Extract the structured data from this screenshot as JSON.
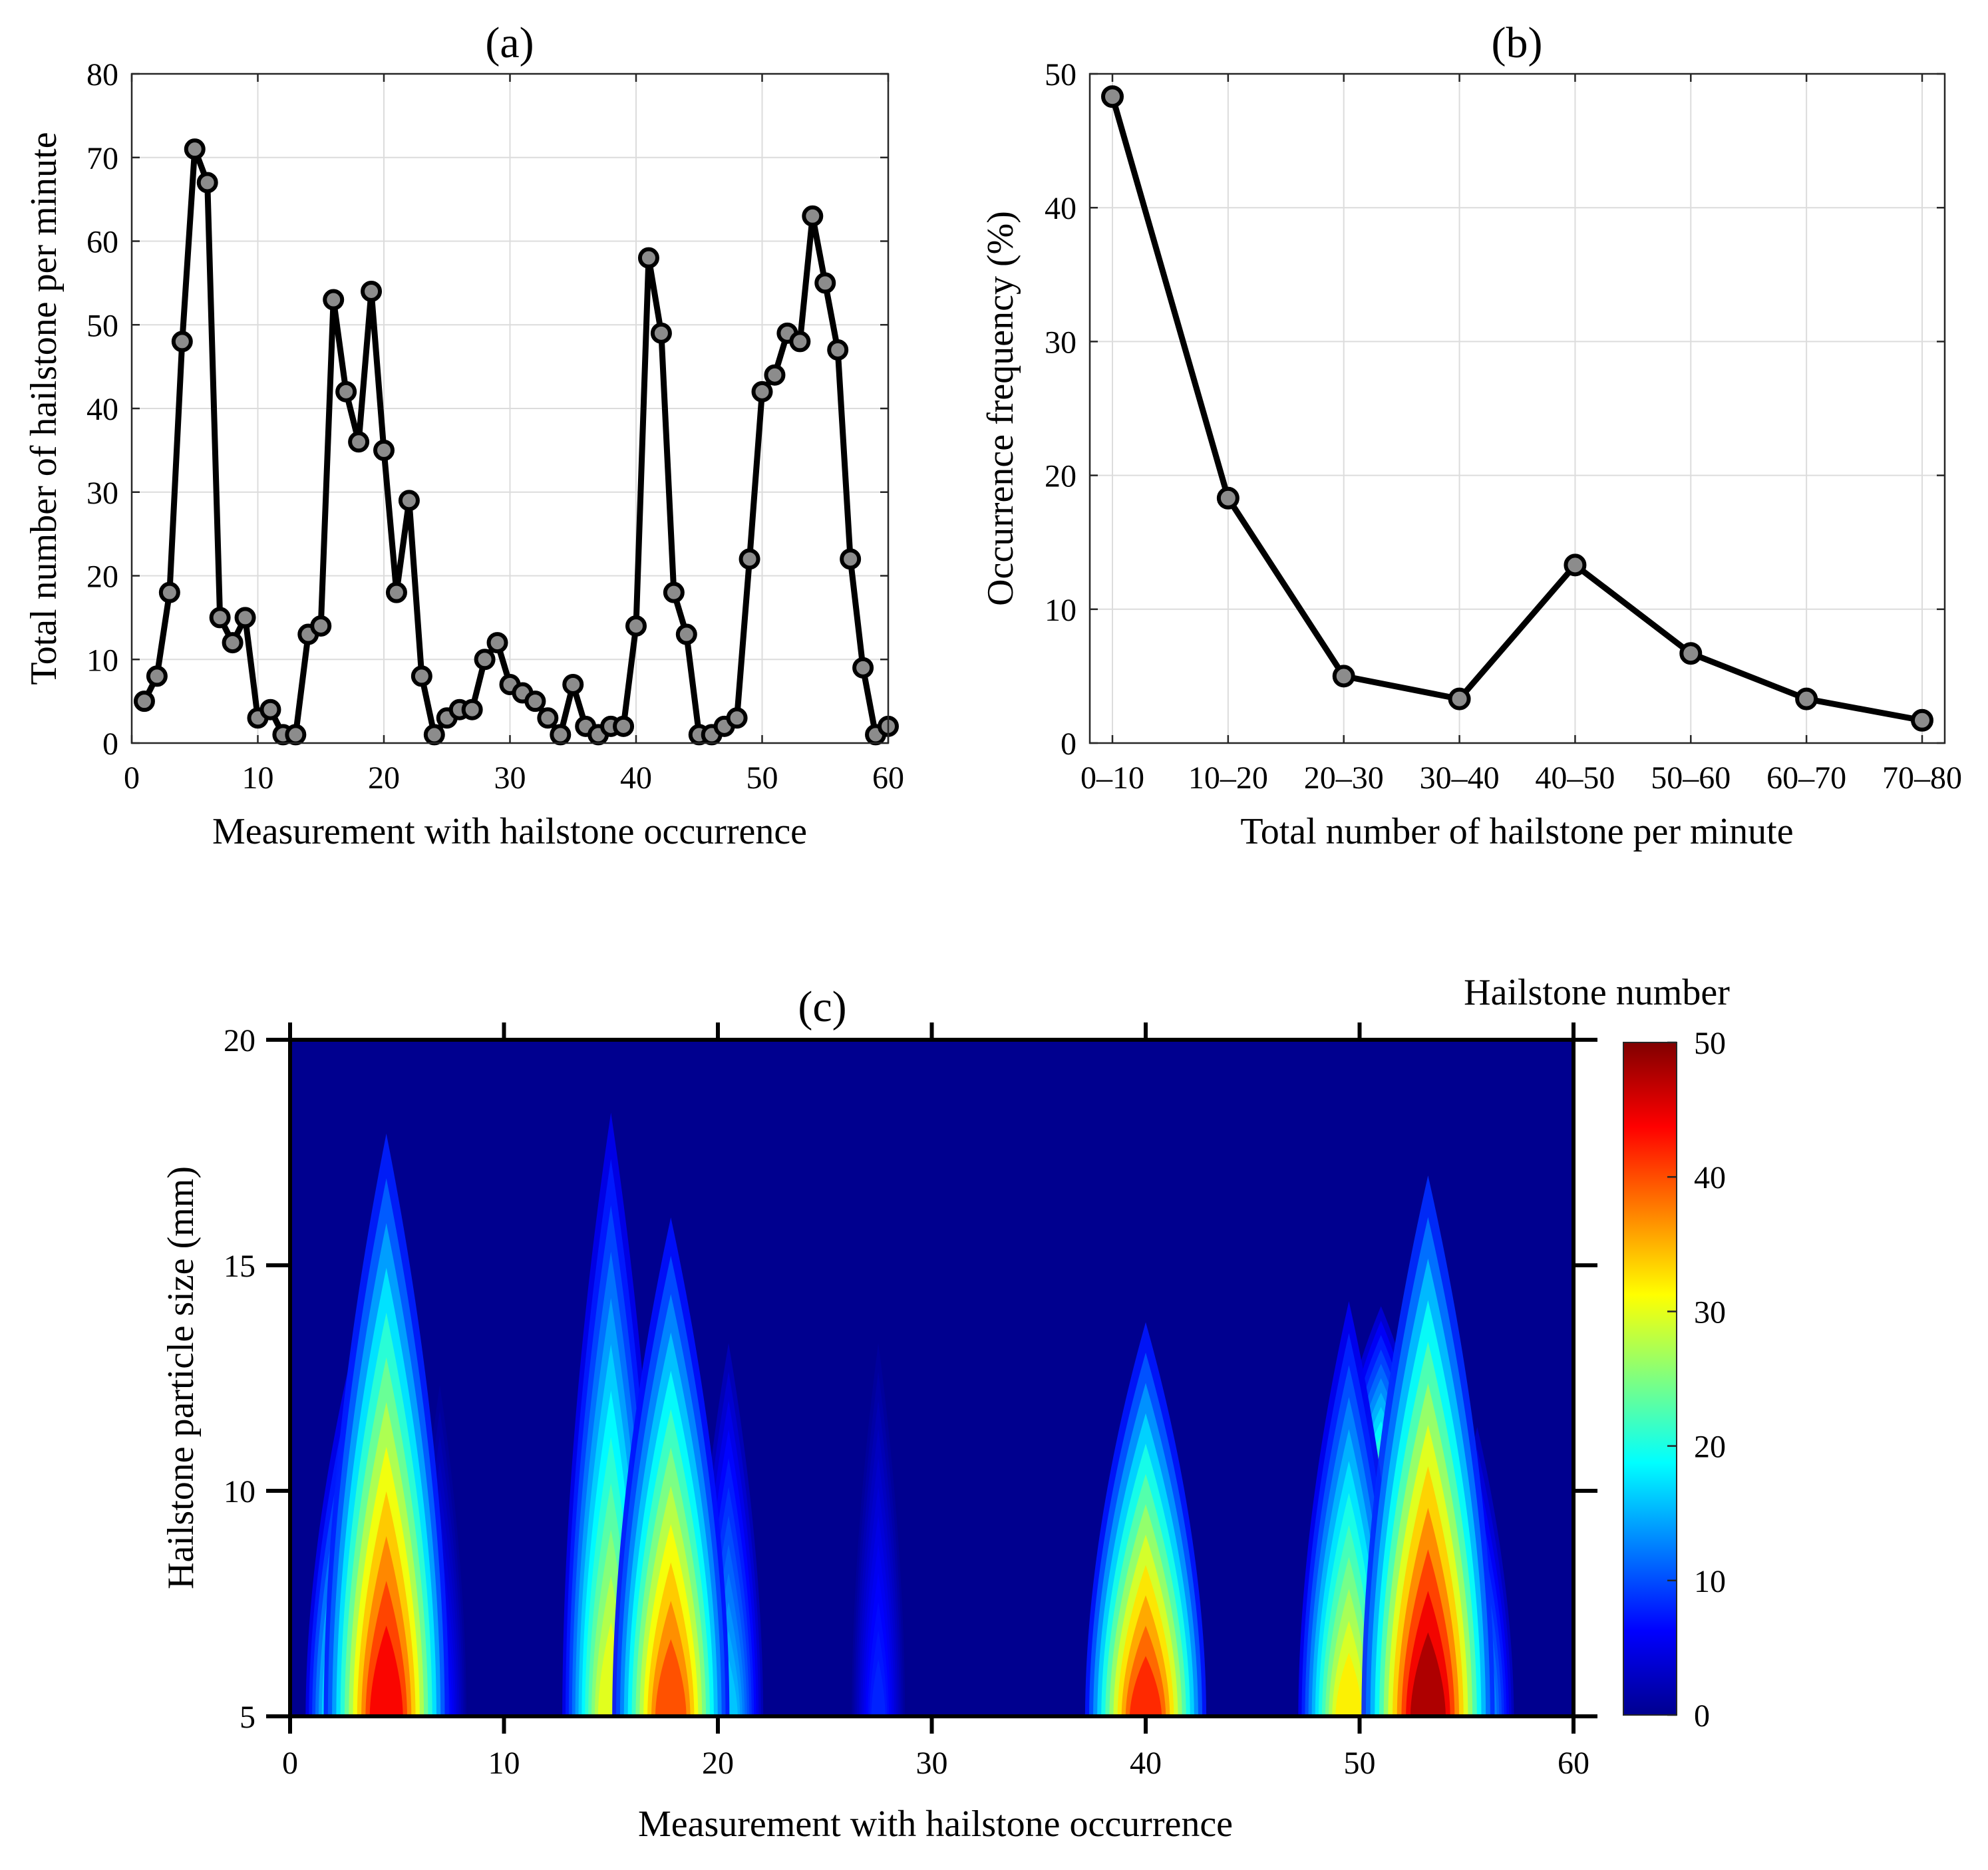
{
  "chart_data": [
    {
      "id": "a",
      "type": "line",
      "title": "(a)",
      "xlabel": "Measurement with hailstone occurrence",
      "ylabel": "Total number of hailstone per minute",
      "xlim": [
        0,
        60
      ],
      "ylim": [
        0,
        80
      ],
      "xticks": [
        0,
        10,
        20,
        30,
        40,
        50,
        60
      ],
      "yticks": [
        0,
        10,
        20,
        30,
        40,
        50,
        60,
        70,
        80
      ],
      "grid": true,
      "line_color": "#000000",
      "marker_face_color": "#8c8c8c",
      "series": [
        {
          "x": [
            1,
            2,
            3,
            4,
            5,
            6,
            7,
            8,
            9,
            10,
            11,
            12,
            13,
            14,
            15,
            16,
            17,
            18,
            19,
            20,
            21,
            22,
            23,
            24,
            25,
            26,
            27,
            28,
            29,
            30,
            31,
            32,
            33,
            34,
            35,
            36,
            37,
            38,
            39,
            40,
            41,
            42,
            43,
            44,
            45,
            46,
            47,
            48,
            49,
            50,
            51,
            52,
            53,
            54,
            55,
            56,
            57,
            58,
            59,
            60
          ],
          "values": [
            5,
            8,
            18,
            48,
            71,
            67,
            15,
            12,
            15,
            3,
            4,
            1,
            1,
            13,
            14,
            53,
            42,
            36,
            54,
            35,
            18,
            29,
            8,
            1,
            3,
            4,
            4,
            10,
            12,
            7,
            6,
            5,
            3,
            1,
            7,
            2,
            1,
            2,
            2,
            14,
            58,
            49,
            18,
            13,
            1,
            1,
            2,
            3,
            22,
            42,
            44,
            49,
            48,
            63,
            55,
            47,
            22,
            9,
            1,
            2
          ]
        }
      ]
    },
    {
      "id": "b",
      "type": "line",
      "title": "(b)",
      "xlabel": "Total number of hailstone per minute",
      "ylabel": "Occurrence frequency (%)",
      "categories": [
        "0–10",
        "10–20",
        "20–30",
        "30–40",
        "40–50",
        "50–60",
        "60–70",
        "70–80"
      ],
      "ylim": [
        0,
        50
      ],
      "yticks": [
        0,
        10,
        20,
        30,
        40,
        50
      ],
      "grid": true,
      "line_color": "#000000",
      "marker_face_color": "#8c8c8c",
      "series": [
        {
          "values": [
            48.3,
            18.3,
            5.0,
            3.3,
            13.3,
            6.7,
            3.3,
            1.7
          ]
        }
      ]
    },
    {
      "id": "c",
      "type": "heatmap",
      "title": "(c)",
      "xlabel": "Measurement with hailstone occurrence",
      "ylabel": "Hailstone particle size (mm)",
      "xlim": [
        0,
        60
      ],
      "ylim": [
        5,
        20
      ],
      "xticks": [
        0,
        10,
        20,
        30,
        40,
        50,
        60
      ],
      "yticks": [
        5,
        10,
        15,
        20
      ],
      "colorbar": {
        "label": "Hailstone number",
        "min": 0,
        "max": 50,
        "ticks": [
          0,
          10,
          20,
          30,
          40,
          50
        ],
        "colormap": "jet"
      },
      "background_color": "#00008f",
      "hotspots": [
        {
          "x": 4.5,
          "peak_size_mm": 5,
          "peak_count": 44,
          "top_size_mm": 19
        },
        {
          "x": 3.0,
          "peak_size_mm": 5,
          "peak_count": 30,
          "top_size_mm": 14
        },
        {
          "x": 7.0,
          "peak_size_mm": 5,
          "peak_count": 8,
          "top_size_mm": 13
        },
        {
          "x": 15.0,
          "peak_size_mm": 5,
          "peak_count": 30,
          "top_size_mm": 19.5
        },
        {
          "x": 17.8,
          "peak_size_mm": 5,
          "peak_count": 40,
          "top_size_mm": 17
        },
        {
          "x": 20.5,
          "peak_size_mm": 5,
          "peak_count": 16,
          "top_size_mm": 14
        },
        {
          "x": 27.5,
          "peak_size_mm": 5,
          "peak_count": 8,
          "top_size_mm": 14
        },
        {
          "x": 40.0,
          "peak_size_mm": 5,
          "peak_count": 42,
          "top_size_mm": 14.5
        },
        {
          "x": 49.5,
          "peak_size_mm": 5,
          "peak_count": 32,
          "top_size_mm": 15
        },
        {
          "x": 51.0,
          "peak_size_mm": 10,
          "peak_count": 24,
          "top_size_mm": 14.5
        },
        {
          "x": 53.2,
          "peak_size_mm": 5,
          "peak_count": 48,
          "top_size_mm": 18
        },
        {
          "x": 55.5,
          "peak_size_mm": 5,
          "peak_count": 18,
          "top_size_mm": 12
        }
      ]
    }
  ]
}
